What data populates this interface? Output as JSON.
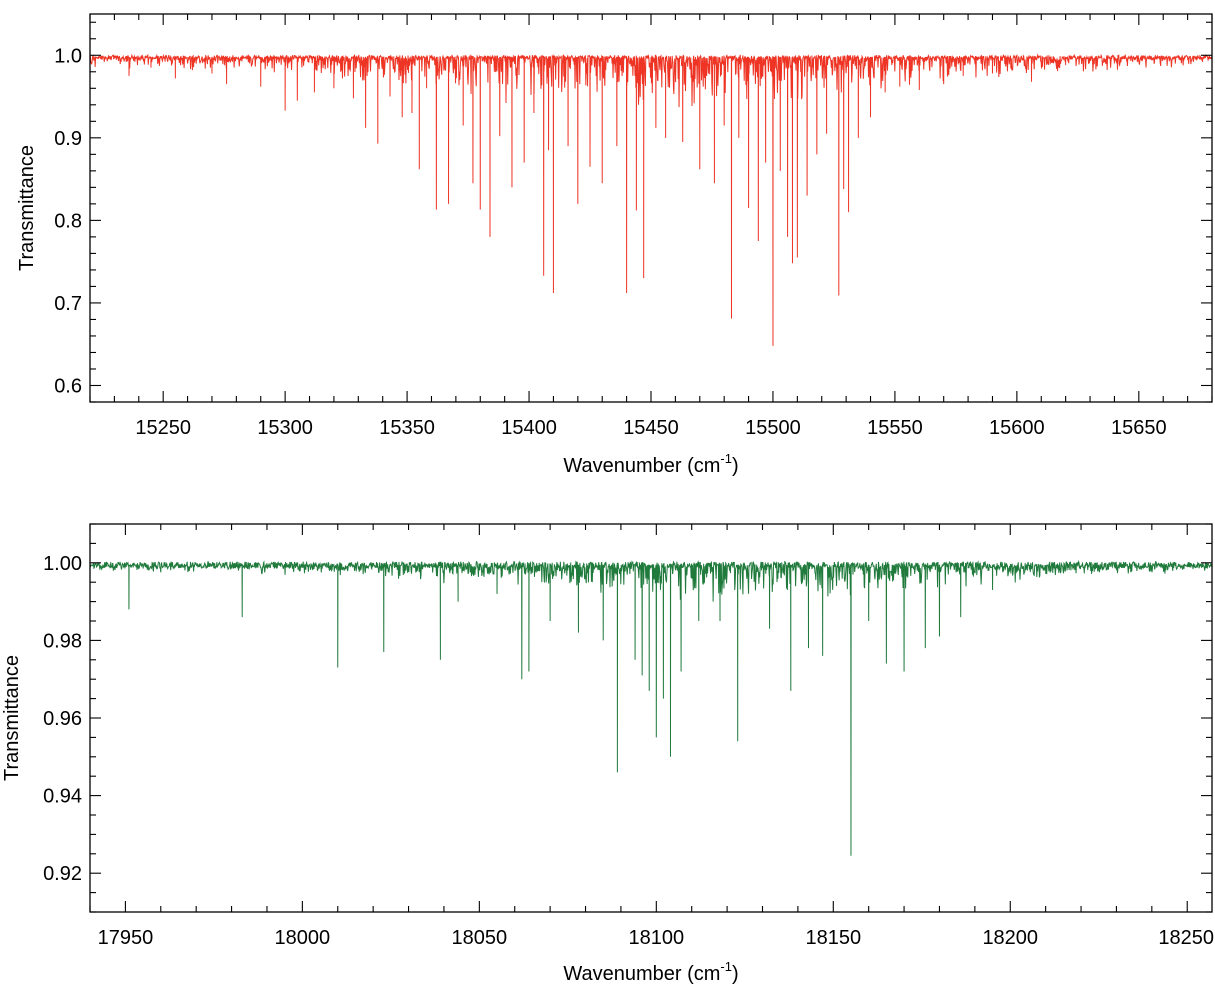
{
  "chart_data": [
    {
      "type": "line",
      "xlabel": "Wavenumber",
      "xlabel_unit": "(cm",
      "xlabel_unit_exp": "-1",
      "xlabel_unit_close": ")",
      "ylabel": "Transmittance",
      "xlim": [
        15220,
        15680
      ],
      "ylim": [
        0.58,
        1.05
      ],
      "x_ticks": [
        15250,
        15300,
        15350,
        15400,
        15450,
        15500,
        15550,
        15600,
        15650
      ],
      "x_tick_labels": [
        "15250",
        "15300",
        "15350",
        "15400",
        "15450",
        "15500",
        "15550",
        "15600",
        "15650"
      ],
      "x_minor_step": 10,
      "y_ticks": [
        0.6,
        0.7,
        0.8,
        0.9,
        1.0
      ],
      "y_tick_labels": [
        "0.6",
        "0.7",
        "0.8",
        "0.9",
        "1.0"
      ],
      "y_minor_step": 0.02,
      "color": "#ee3424",
      "baseline": 0.998,
      "absorption_lines": [
        [
          15236,
          0.975
        ],
        [
          15245,
          0.985
        ],
        [
          15255,
          0.972
        ],
        [
          15262,
          0.982
        ],
        [
          15270,
          0.978
        ],
        [
          15276,
          0.965
        ],
        [
          15290,
          0.962
        ],
        [
          15300,
          0.933
        ],
        [
          15305,
          0.945
        ],
        [
          15312,
          0.955
        ],
        [
          15320,
          0.96
        ],
        [
          15328,
          0.948
        ],
        [
          15333,
          0.912
        ],
        [
          15338,
          0.893
        ],
        [
          15343,
          0.95
        ],
        [
          15348,
          0.925
        ],
        [
          15352,
          0.93
        ],
        [
          15355,
          0.862
        ],
        [
          15358,
          0.96
        ],
        [
          15362,
          0.813
        ],
        [
          15367,
          0.82
        ],
        [
          15373,
          0.915
        ],
        [
          15377,
          0.845
        ],
        [
          15380,
          0.813
        ],
        [
          15384,
          0.78
        ],
        [
          15388,
          0.902
        ],
        [
          15393,
          0.84
        ],
        [
          15398,
          0.87
        ],
        [
          15402,
          0.93
        ],
        [
          15406,
          0.733
        ],
        [
          15408,
          0.885
        ],
        [
          15410,
          0.712
        ],
        [
          15416,
          0.89
        ],
        [
          15420,
          0.82
        ],
        [
          15425,
          0.865
        ],
        [
          15430,
          0.845
        ],
        [
          15436,
          0.89
        ],
        [
          15440,
          0.712
        ],
        [
          15444,
          0.812
        ],
        [
          15447,
          0.73
        ],
        [
          15452,
          0.912
        ],
        [
          15456,
          0.9
        ],
        [
          15463,
          0.895
        ],
        [
          15470,
          0.862
        ],
        [
          15476,
          0.845
        ],
        [
          15480,
          0.915
        ],
        [
          15483,
          0.681
        ],
        [
          15486,
          0.9
        ],
        [
          15490,
          0.815
        ],
        [
          15494,
          0.775
        ],
        [
          15497,
          0.87
        ],
        [
          15500,
          0.648
        ],
        [
          15503,
          0.86
        ],
        [
          15506,
          0.78
        ],
        [
          15508,
          0.748
        ],
        [
          15510,
          0.755
        ],
        [
          15514,
          0.83
        ],
        [
          15518,
          0.88
        ],
        [
          15522,
          0.905
        ],
        [
          15527,
          0.709
        ],
        [
          15529,
          0.838
        ],
        [
          15531,
          0.81
        ],
        [
          15535,
          0.9
        ],
        [
          15540,
          0.925
        ],
        [
          15546,
          0.955
        ],
        [
          15552,
          0.962
        ],
        [
          15560,
          0.958
        ],
        [
          15570,
          0.965
        ],
        [
          15578,
          0.975
        ],
        [
          15590,
          0.978
        ],
        [
          15606,
          0.968
        ],
        [
          15620,
          0.988
        ],
        [
          15640,
          0.99
        ]
      ],
      "noise_amplitude": 0.002,
      "dense_band_center": 15450,
      "dense_band_width": 130,
      "dense_band_depth": 0.06
    },
    {
      "type": "line",
      "xlabel": "Wavenumber",
      "xlabel_unit": "(cm",
      "xlabel_unit_exp": "-1",
      "xlabel_unit_close": ")",
      "ylabel": "Transmittance",
      "xlim": [
        17940,
        18257
      ],
      "ylim": [
        0.91,
        1.01
      ],
      "x_ticks": [
        17950,
        18000,
        18050,
        18100,
        18150,
        18200,
        18250
      ],
      "x_tick_labels": [
        "17950",
        "18000",
        "18050",
        "18100",
        "18150",
        "18200",
        "18250"
      ],
      "x_minor_step": 10,
      "y_ticks": [
        0.92,
        0.94,
        0.96,
        0.98,
        1.0
      ],
      "y_tick_labels": [
        "0.92",
        "0.94",
        "0.96",
        "0.98",
        "1.00"
      ],
      "y_minor_step": 0.005,
      "color": "#1f7a3c",
      "baseline": 0.9995,
      "absorption_lines": [
        [
          17951,
          0.988
        ],
        [
          17983,
          0.986
        ],
        [
          18010,
          0.973
        ],
        [
          18023,
          0.977
        ],
        [
          18039,
          0.975
        ],
        [
          18044,
          0.99
        ],
        [
          18055,
          0.992
        ],
        [
          18062,
          0.97
        ],
        [
          18064,
          0.972
        ],
        [
          18070,
          0.985
        ],
        [
          18078,
          0.982
        ],
        [
          18085,
          0.98
        ],
        [
          18089,
          0.946
        ],
        [
          18094,
          0.975
        ],
        [
          18096,
          0.971
        ],
        [
          18098,
          0.967
        ],
        [
          18100,
          0.955
        ],
        [
          18102,
          0.965
        ],
        [
          18104,
          0.95
        ],
        [
          18107,
          0.972
        ],
        [
          18112,
          0.985
        ],
        [
          18118,
          0.985
        ],
        [
          18123,
          0.954
        ],
        [
          18132,
          0.983
        ],
        [
          18138,
          0.967
        ],
        [
          18143,
          0.978
        ],
        [
          18147,
          0.976
        ],
        [
          18155,
          0.9245
        ],
        [
          18160,
          0.985
        ],
        [
          18165,
          0.974
        ],
        [
          18170,
          0.972
        ],
        [
          18176,
          0.978
        ],
        [
          18180,
          0.981
        ],
        [
          18186,
          0.986
        ],
        [
          18195,
          0.993
        ]
      ],
      "noise_amplitude": 0.0008,
      "dense_band_center": 18120,
      "dense_band_width": 90,
      "dense_band_depth": 0.008
    }
  ]
}
